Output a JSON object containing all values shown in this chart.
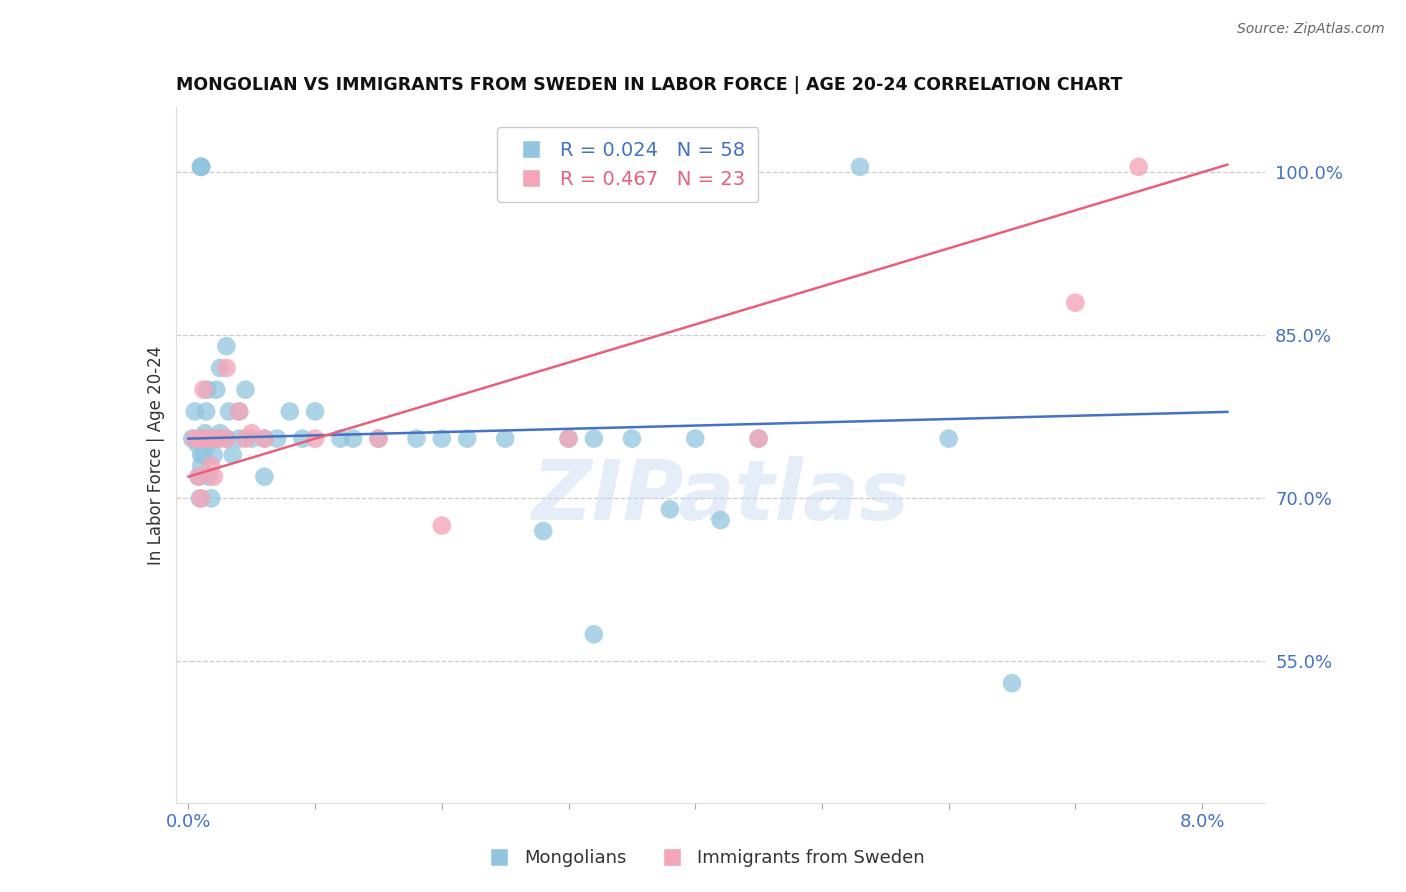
{
  "title": "MONGOLIAN VS IMMIGRANTS FROM SWEDEN IN LABOR FORCE | AGE 20-24 CORRELATION CHART",
  "source": "Source: ZipAtlas.com",
  "ylabel": "In Labor Force | Age 20-24",
  "y_ticks": [
    0.55,
    0.7,
    0.85,
    1.0
  ],
  "y_tick_labels": [
    "55.0%",
    "70.0%",
    "85.0%",
    "100.0%"
  ],
  "xlim": [
    -0.001,
    0.085
  ],
  "ylim": [
    0.42,
    1.06
  ],
  "blue_color": "#92C5DE",
  "pink_color": "#F4A6B8",
  "blue_line_color": "#4472C4",
  "pink_line_color": "#E8607A",
  "legend_blue_r": "R = 0.024",
  "legend_blue_n": "N = 58",
  "legend_pink_r": "R = 0.467",
  "legend_pink_n": "N = 23",
  "watermark": "ZIPatlas",
  "blue_x": [
    0.0003,
    0.0005,
    0.0007,
    0.0008,
    0.0009,
    0.001,
    0.001,
    0.001,
    0.0012,
    0.0013,
    0.0014,
    0.0015,
    0.0015,
    0.0016,
    0.0018,
    0.0018,
    0.002,
    0.002,
    0.0022,
    0.0022,
    0.0025,
    0.0025,
    0.003,
    0.003,
    0.0032,
    0.0035,
    0.004,
    0.004,
    0.0045,
    0.005,
    0.006,
    0.006,
    0.007,
    0.008,
    0.009,
    0.01,
    0.012,
    0.013,
    0.015,
    0.018,
    0.02,
    0.022,
    0.025,
    0.028,
    0.03,
    0.032,
    0.035,
    0.038,
    0.04,
    0.042,
    0.045,
    0.032,
    0.053,
    0.06,
    0.065,
    0.001,
    0.001,
    0.001
  ],
  "blue_y": [
    0.755,
    0.78,
    0.75,
    0.72,
    0.7,
    0.755,
    0.74,
    0.73,
    0.74,
    0.76,
    0.78,
    0.8,
    0.75,
    0.72,
    0.755,
    0.7,
    0.755,
    0.74,
    0.8,
    0.755,
    0.82,
    0.76,
    0.84,
    0.755,
    0.78,
    0.74,
    0.755,
    0.78,
    0.8,
    0.755,
    0.755,
    0.72,
    0.755,
    0.78,
    0.755,
    0.78,
    0.755,
    0.755,
    0.755,
    0.755,
    0.755,
    0.755,
    0.755,
    0.67,
    0.755,
    0.755,
    0.755,
    0.69,
    0.755,
    0.68,
    0.755,
    0.575,
    1.005,
    0.755,
    0.53,
    1.005,
    1.005,
    1.005
  ],
  "pink_x": [
    0.0005,
    0.0008,
    0.001,
    0.001,
    0.0012,
    0.0015,
    0.0018,
    0.002,
    0.002,
    0.0025,
    0.003,
    0.003,
    0.004,
    0.0045,
    0.005,
    0.006,
    0.01,
    0.015,
    0.02,
    0.03,
    0.045,
    0.07,
    0.075
  ],
  "pink_y": [
    0.755,
    0.72,
    0.755,
    0.7,
    0.8,
    0.755,
    0.73,
    0.755,
    0.72,
    0.755,
    0.82,
    0.755,
    0.78,
    0.755,
    0.76,
    0.755,
    0.755,
    0.755,
    0.675,
    0.755,
    0.755,
    0.88,
    1.005
  ]
}
